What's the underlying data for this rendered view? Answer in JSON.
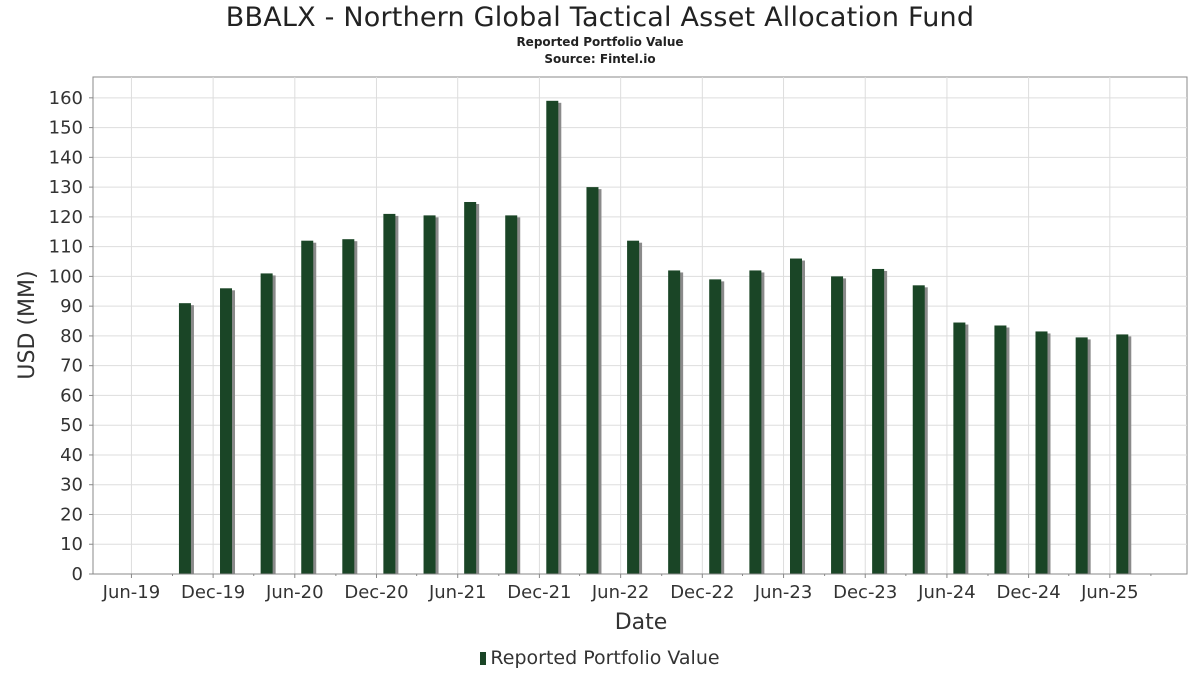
{
  "title": "BBALX - Northern Global Tactical Asset Allocation Fund",
  "subtitle": "Reported Portfolio Value",
  "source": "Source: Fintel.io",
  "colors": {
    "bar": "#1a4526",
    "shadow": "#8a8a8a",
    "grid": "#dddddd",
    "axis": "#888888",
    "plot_bg": "#ffffff"
  },
  "chart_data": {
    "type": "bar",
    "title": "BBALX - Northern Global Tactical Asset Allocation Fund",
    "subtitle": "Reported Portfolio Value",
    "xlabel": "Date",
    "ylabel": "USD (MM)",
    "ylim": [
      0,
      167
    ],
    "yticks": [
      0,
      10,
      20,
      30,
      40,
      50,
      60,
      70,
      80,
      90,
      100,
      110,
      120,
      130,
      140,
      150,
      160
    ],
    "x_tick_labels": [
      "Jun-19",
      "Dec-19",
      "Jun-20",
      "Dec-20",
      "Jun-21",
      "Dec-21",
      "Jun-22",
      "Dec-22",
      "Jun-23",
      "Dec-23",
      "Jun-24",
      "Dec-24",
      "Jun-25"
    ],
    "grid": true,
    "legend_position": "bottom-center",
    "series": [
      {
        "name": "Reported Portfolio Value",
        "x": [
          "2019-09-30",
          "2019-12-31",
          "2020-03-31",
          "2020-06-30",
          "2020-09-30",
          "2020-12-31",
          "2021-03-31",
          "2021-06-30",
          "2021-09-30",
          "2021-12-31",
          "2022-03-31",
          "2022-06-30",
          "2022-09-30",
          "2022-12-31",
          "2023-03-31",
          "2023-06-30",
          "2023-09-30",
          "2023-12-31",
          "2024-03-31",
          "2024-06-30",
          "2024-09-30",
          "2024-12-31",
          "2025-03-31",
          "2025-06-30"
        ],
        "values": [
          91,
          96,
          101,
          112,
          112.5,
          121,
          120.5,
          125,
          120.5,
          159,
          130,
          112,
          102,
          99,
          102,
          106,
          100,
          102.5,
          97,
          84.5,
          83.5,
          81.5,
          79.5,
          80.5
        ]
      }
    ]
  }
}
